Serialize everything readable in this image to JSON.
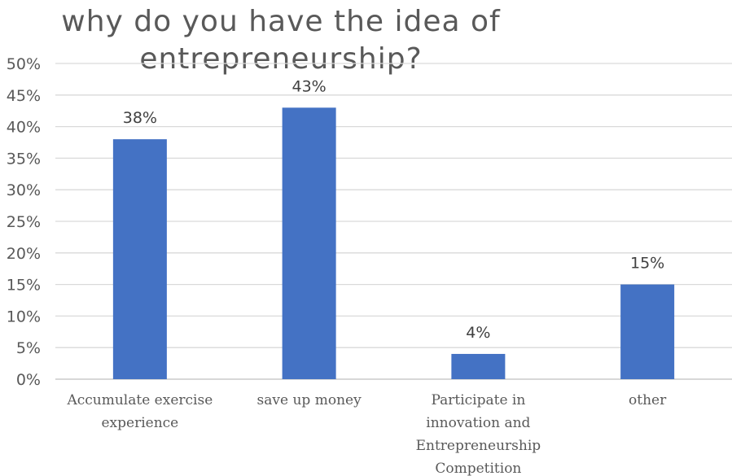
{
  "chart_data": {
    "type": "bar",
    "title": "why do you have the idea of entrepreneurship?",
    "categories": [
      "Accumulate exercise experience",
      "save up money",
      "Participate in innovation and Entrepreneurship Competition",
      "other"
    ],
    "values": [
      0.38,
      0.43,
      0.04,
      0.15
    ],
    "data_labels": [
      "38%",
      "43%",
      "4%",
      "15%"
    ],
    "ylim": [
      0,
      0.5
    ],
    "yticks": [
      0,
      0.05,
      0.1,
      0.15,
      0.2,
      0.25,
      0.3,
      0.35,
      0.4,
      0.45,
      0.5
    ],
    "ytick_labels": [
      "0%",
      "5%",
      "10%",
      "15%",
      "20%",
      "25%",
      "30%",
      "35%",
      "40%",
      "45%",
      "50%"
    ],
    "xlabel": "",
    "ylabel": "",
    "grid": true,
    "legend": "none",
    "bar_color": "#4472C4",
    "grid_color": "#D9D9D9"
  }
}
